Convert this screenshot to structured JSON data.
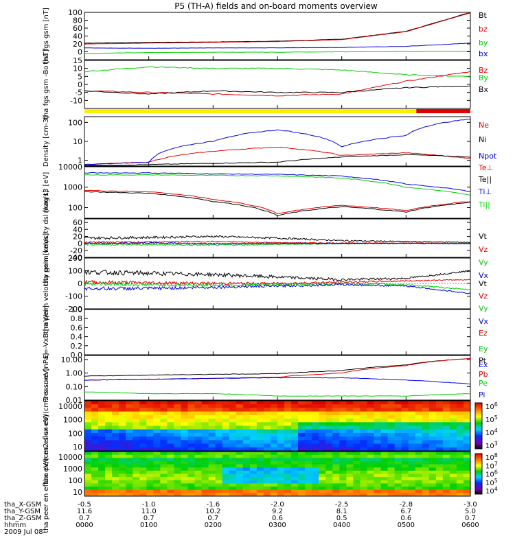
{
  "title": "P5 (TH-A) fields and on-board moments overview",
  "colors": {
    "black": "#000000",
    "red": "#e00000",
    "green": "#00cc00",
    "blue": "#0000dd",
    "yellow": "#ffee00"
  },
  "footer": {
    "rows": [
      {
        "label": "tha_X-GSM",
        "values": [
          "-0.5",
          "-1.0",
          "-1.6",
          "-2.0",
          "-2.5",
          "-2.8",
          "-3.0"
        ]
      },
      {
        "label": "tha_Y-GSM",
        "values": [
          "11.6",
          "11.0",
          "10.2",
          "9.2",
          "8.1",
          "6.7",
          "5.0"
        ]
      },
      {
        "label": "tha_Z-GSM",
        "values": [
          "0.7",
          "0.7",
          "0.7",
          "0.6",
          "0.5",
          "0.6",
          "0.7"
        ]
      },
      {
        "label": "hhmm",
        "values": [
          "0000",
          "0100",
          "0200",
          "0300",
          "0400",
          "0500",
          "0600"
        ]
      }
    ],
    "date": "2009 Jul 08"
  },
  "chart_data": [
    {
      "type": "line",
      "ylabel": "tha fgs gsm [nT]",
      "ylim": [
        -20,
        100
      ],
      "yticks": [
        "100",
        "80",
        "60",
        "40",
        "20",
        "0"
      ],
      "x_hours": [
        0,
        1,
        2,
        3,
        4,
        5,
        6
      ],
      "series": [
        {
          "name": "Bt",
          "color": "black",
          "values": [
            22,
            24,
            25,
            27,
            32,
            52,
            100
          ]
        },
        {
          "name": "bz",
          "color": "red",
          "values": [
            20,
            22,
            24,
            26,
            31,
            51,
            99
          ]
        },
        {
          "name": "by",
          "color": "green",
          "values": [
            -4,
            -2,
            -1,
            -1,
            0,
            1,
            2
          ]
        },
        {
          "name": "bx",
          "color": "blue",
          "values": [
            10,
            9,
            10,
            10,
            11,
            14,
            22
          ]
        }
      ]
    },
    {
      "type": "line",
      "ylabel": "tha fgs gsm -Bo [nT]",
      "ylim": [
        -15,
        15
      ],
      "yticks": [
        "15",
        "10",
        "5",
        "0",
        "-5",
        "-10"
      ],
      "x_hours": [
        0,
        1,
        2,
        3,
        4,
        5,
        6
      ],
      "series": [
        {
          "name": "Bz",
          "color": "red",
          "values": [
            -4,
            -5,
            -6,
            -7,
            -6,
            2,
            8
          ]
        },
        {
          "name": "By",
          "color": "green",
          "values": [
            8,
            11,
            10,
            10,
            9,
            6,
            5
          ]
        },
        {
          "name": "Bx",
          "color": "black",
          "values": [
            -4,
            -6,
            -4,
            -5,
            -5,
            -2,
            -1
          ]
        }
      ]
    },
    {
      "type": "line",
      "ylabel": "Density [cm-3]",
      "yscale": "log",
      "ylim": [
        0.5,
        200
      ],
      "yticks": [
        "100",
        "10",
        "1"
      ],
      "x_hours": [
        0,
        1,
        2,
        3,
        4,
        5,
        6
      ],
      "series": [
        {
          "name": "Ne",
          "color": "red",
          "values": [
            0.6,
            0.8,
            3,
            5,
            1.8,
            2.5,
            1.2
          ]
        },
        {
          "name": "Ni",
          "color": "black",
          "values": [
            0.5,
            0.6,
            0.7,
            0.8,
            1.5,
            2,
            1.5
          ]
        },
        {
          "name": "Npot",
          "color": "blue",
          "values": [
            0.6,
            0.8,
            10,
            40,
            5,
            20,
            150
          ]
        }
      ]
    },
    {
      "type": "line",
      "ylabel": "mag t3 [eV]",
      "yscale": "log",
      "ylim": [
        30,
        10000
      ],
      "yticks": [
        "10000",
        "1000",
        "100"
      ],
      "x_hours": [
        0,
        1,
        2,
        3,
        4,
        5,
        6
      ],
      "series": [
        {
          "name": "Te⊥",
          "color": "red",
          "values": [
            700,
            600,
            250,
            50,
            130,
            70,
            200
          ]
        },
        {
          "name": "Te||",
          "color": "black",
          "values": [
            600,
            500,
            200,
            40,
            110,
            60,
            180
          ]
        },
        {
          "name": "Ti⊥",
          "color": "blue",
          "values": [
            5000,
            5000,
            4500,
            4200,
            3500,
            1400,
            600
          ]
        },
        {
          "name": "Ti||",
          "color": "green",
          "values": [
            4000,
            4000,
            3800,
            3600,
            2800,
            1000,
            400
          ]
        }
      ]
    },
    {
      "type": "line",
      "ylabel": "tha peim velocity dsl [km/s]",
      "ylim": [
        -40,
        70
      ],
      "yticks": [
        "60",
        "40",
        "20",
        "0",
        "-20",
        "-40"
      ],
      "x_hours": [
        0,
        1,
        2,
        3,
        4,
        5,
        6
      ],
      "series": [
        {
          "name": "Vt",
          "color": "black",
          "values": [
            15,
            17,
            20,
            15,
            8,
            5,
            3
          ]
        },
        {
          "name": "Vz",
          "color": "red",
          "values": [
            3,
            4,
            5,
            2,
            1,
            1,
            0
          ]
        },
        {
          "name": "Vy",
          "color": "green",
          "values": [
            -3,
            -4,
            -5,
            -3,
            -1,
            0,
            0
          ]
        },
        {
          "name": "Vx",
          "color": "blue",
          "values": [
            0,
            1,
            -1,
            0,
            0,
            0,
            -1
          ]
        }
      ]
    },
    {
      "type": "line",
      "ylabel": "tha peim velocity gsm [km/s]",
      "ylim": [
        -200,
        200
      ],
      "yticks": [
        "200",
        "100",
        "0",
        "-100",
        "-200"
      ],
      "x_hours": [
        0,
        1,
        2,
        3,
        4,
        5,
        6
      ],
      "series": [
        {
          "name": "Vt",
          "color": "black",
          "values": [
            90,
            80,
            70,
            50,
            30,
            40,
            100
          ]
        },
        {
          "name": "Vz",
          "color": "red",
          "values": [
            10,
            5,
            0,
            0,
            10,
            20,
            30
          ]
        },
        {
          "name": "Vy",
          "color": "green",
          "values": [
            0,
            -10,
            -15,
            -10,
            0,
            -10,
            -50
          ]
        },
        {
          "name": "Vx",
          "color": "blue",
          "values": [
            -40,
            -40,
            -30,
            -20,
            -10,
            -20,
            -80
          ]
        }
      ]
    },
    {
      "type": "line",
      "ylabel": "E=-VxB [mV/m]",
      "ylim": [
        0,
        1
      ],
      "yticks": [
        "1.0",
        "0.8",
        "0.6",
        "0.4",
        "0.2",
        "0.0"
      ],
      "series": [
        {
          "name": "Ez",
          "color": "red",
          "values": []
        },
        {
          "name": "Ey",
          "color": "green",
          "values": []
        },
        {
          "name": "Ex",
          "color": "blue",
          "values": []
        }
      ]
    },
    {
      "type": "line",
      "ylabel": "Pressure [nPa]",
      "yscale": "log",
      "ylim": [
        0.01,
        20
      ],
      "yticks": [
        "10.00",
        "1.00",
        "0.10",
        "0.01"
      ],
      "x_hours": [
        0,
        1,
        2,
        3,
        4,
        5,
        6
      ],
      "series": [
        {
          "name": "Pt",
          "color": "black",
          "values": [
            0.6,
            0.7,
            0.8,
            0.9,
            1.5,
            4,
            12
          ]
        },
        {
          "name": "Pb",
          "color": "red",
          "values": [
            0.3,
            0.35,
            0.4,
            0.5,
            1,
            3.5,
            12
          ]
        },
        {
          "name": "Pe",
          "color": "green",
          "values": [
            0.04,
            0.03,
            0.03,
            0.02,
            0.02,
            0.02,
            0.03
          ]
        },
        {
          "name": "Pi",
          "color": "blue",
          "values": [
            0.3,
            0.35,
            0.4,
            0.45,
            0.45,
            0.3,
            0.15
          ]
        }
      ]
    },
    {
      "type": "heatmap",
      "ylabel": "tha peir en eflux eV/(cm2-s-sr-eV)",
      "yscale": "log",
      "yticks": [
        "10000",
        "1000",
        "100",
        "10"
      ],
      "colorbar": {
        "ticks": [
          "10^6",
          "10^5",
          "10^4",
          "10^3"
        ]
      }
    },
    {
      "type": "heatmap",
      "ylabel": "tha peer en eflux eV/(cm2-s-sr-eV)",
      "yscale": "log",
      "yticks": [
        "10000",
        "1000",
        "100",
        "10"
      ],
      "colorbar": {
        "ticks": [
          "10^8",
          "10^7",
          "10^6",
          "10^5",
          "10^4"
        ]
      }
    }
  ]
}
